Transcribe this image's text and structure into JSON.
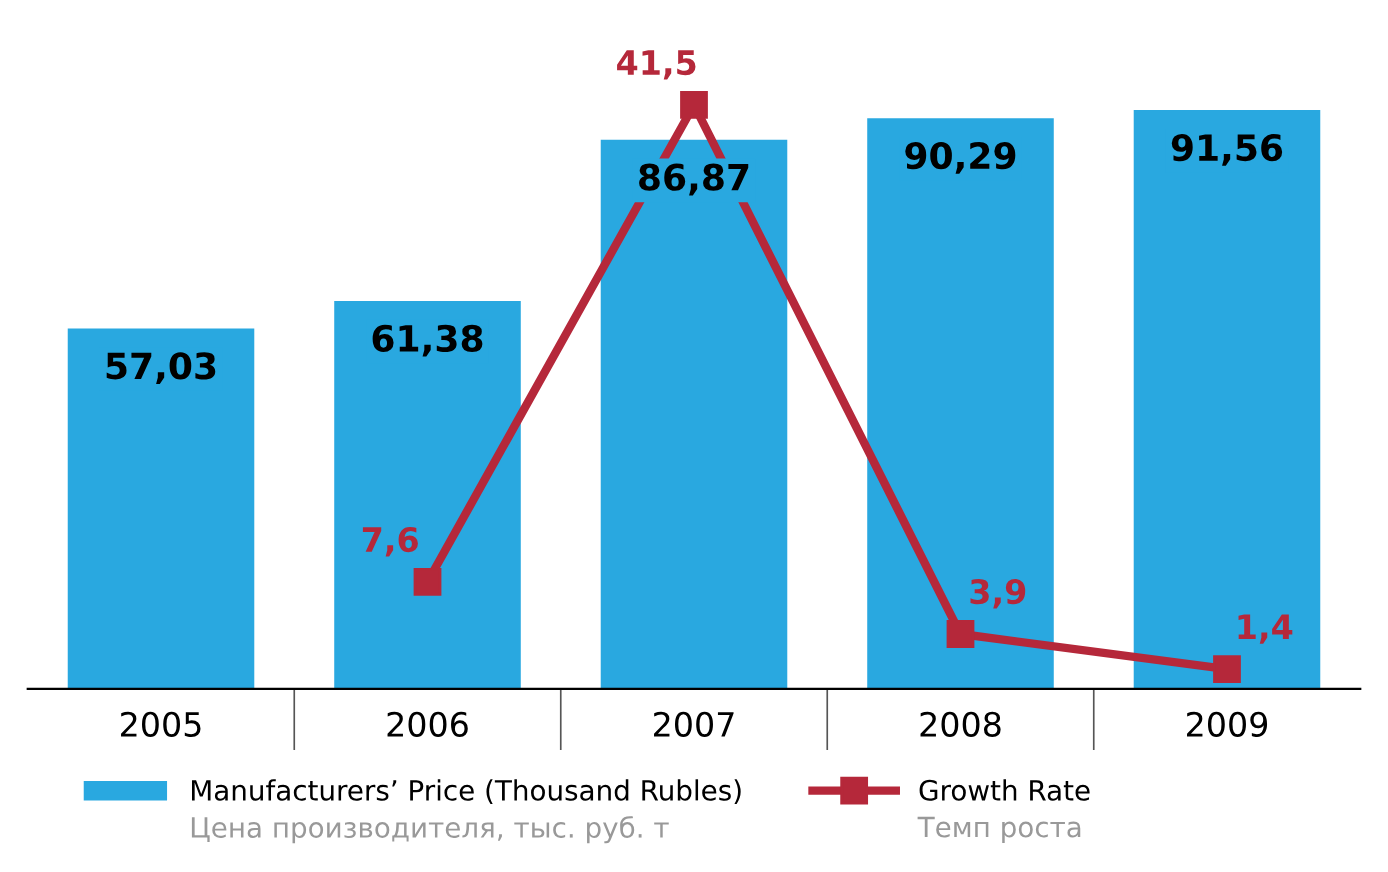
{
  "chart_data": {
    "type": "bar",
    "categories": [
      "2005",
      "2006",
      "2007",
      "2008",
      "2009"
    ],
    "series": [
      {
        "name": "Manufacturers’ Price (Thousand Rubles)",
        "type": "bar",
        "color": "#29a8e0",
        "values": [
          57.03,
          61.38,
          86.87,
          90.29,
          91.56
        ],
        "value_labels": [
          "57,03",
          "61,38",
          "86,87",
          "90,29",
          "91,56"
        ]
      },
      {
        "name": "Growth Rate",
        "type": "line",
        "axis": "y2",
        "color": "#b5283a",
        "values": [
          null,
          7.6,
          41.5,
          3.9,
          1.4
        ],
        "value_labels": [
          null,
          "7,6",
          "41,5",
          "3,9",
          "1,4"
        ]
      }
    ],
    "marker": "square",
    "line_style": "solid",
    "grid": false,
    "legend": "bottom",
    "tick_labels": "x",
    "annotations": [
      "Цена производителя, тыс. руб. т",
      "Темп роста"
    ]
  }
}
